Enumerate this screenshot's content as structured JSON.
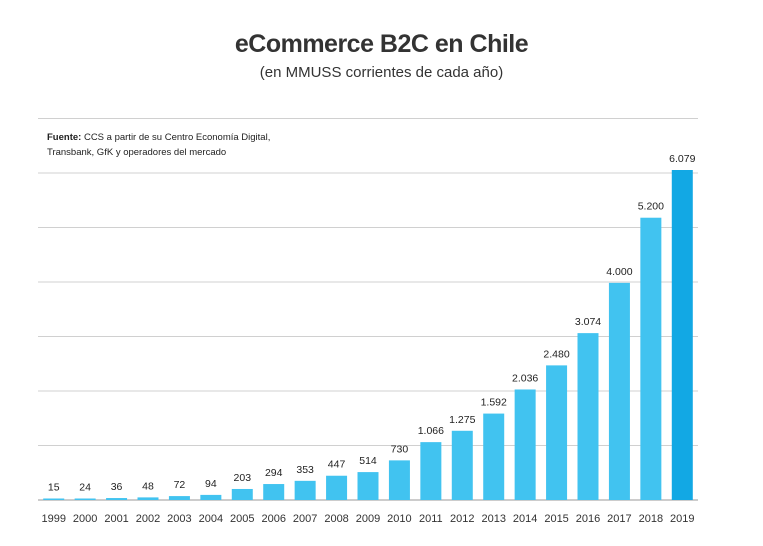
{
  "title": "eCommerce B2C en Chile",
  "subtitle": "(en MMUSS corrientes de cada año)",
  "source_label": "Fuente:",
  "source_text": " CCS a partir de su Centro Economía Digital, Transbank, GfK y operadores del mercado",
  "colors": {
    "bar": "#41c3f0",
    "bar_highlight": "#12a8e4",
    "grid": "#d0d0d0",
    "axis": "#9a9a9a"
  },
  "chart_data": {
    "type": "bar",
    "title": "eCommerce B2C en Chile",
    "subtitle": "(en MMUSS corrientes de cada año)",
    "xlabel": "",
    "ylabel": "",
    "ylim": [
      0,
      6600
    ],
    "grid": true,
    "categories": [
      "1999",
      "2000",
      "2001",
      "2002",
      "2003",
      "2004",
      "2005",
      "2006",
      "2007",
      "2008",
      "2009",
      "2010",
      "2011",
      "2012",
      "2013",
      "2014",
      "2015",
      "2016",
      "2017",
      "2018",
      "2019"
    ],
    "values": [
      15,
      24,
      36,
      48,
      72,
      94,
      203,
      294,
      353,
      447,
      514,
      730,
      1066,
      1275,
      1592,
      2036,
      2480,
      3074,
      4000,
      5200,
      6079
    ],
    "value_labels": [
      "15",
      "24",
      "36",
      "48",
      "72",
      "94",
      "203",
      "294",
      "353",
      "447",
      "514",
      "730",
      "1.066",
      "1.275",
      "1.592",
      "2.036",
      "2.480",
      "3.074",
      "4.000",
      "5.200",
      "6.079"
    ]
  }
}
